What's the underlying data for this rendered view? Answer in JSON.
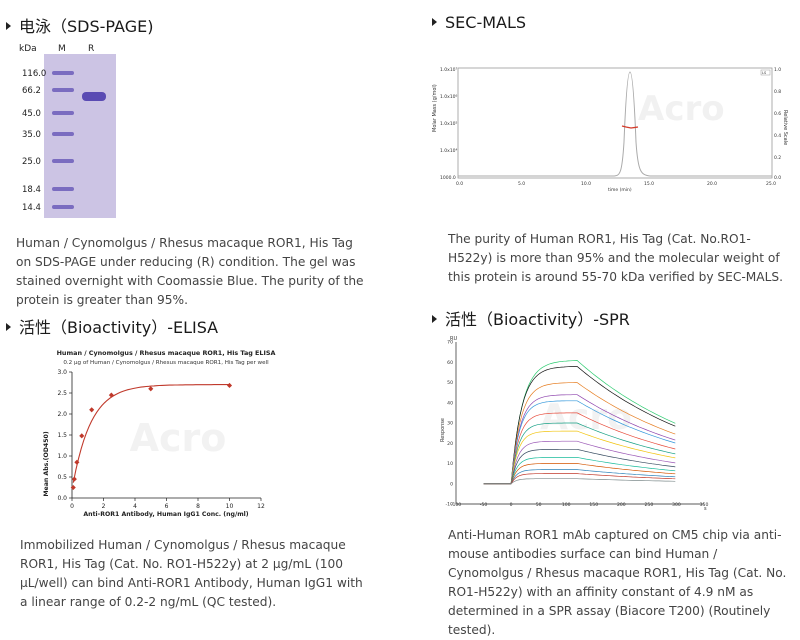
{
  "sections": {
    "sds": {
      "title": "电泳（SDS-PAGE)",
      "gel": {
        "col_kda": "kDa",
        "col_m": "M",
        "col_r": "R",
        "markers": [
          "116.0",
          "66.2",
          "45.0",
          "35.0",
          "25.0",
          "18.4",
          "14.4"
        ]
      },
      "desc": "Human / Cynomolgus / Rhesus macaque ROR1, His Tag on SDS-PAGE under reducing (R) condition. The gel was stained overnight with Coomassie Blue. The purity of the protein is greater than 95%."
    },
    "secmals": {
      "title": "SEC-MALS",
      "plot": {
        "ylabel": "Molar Mass (g/mol)",
        "ylabel2": "Relative Scale",
        "xlabel": "time (min)",
        "yticks": [
          "1.0x10⁷",
          "1.0x10⁶",
          "1.0x10⁵",
          "1.0x10⁴",
          "1000.0"
        ],
        "xticks": [
          "0.0",
          "5.0",
          "10.0",
          "15.0",
          "20.0",
          "25.0"
        ],
        "yticks2": [
          "1.0",
          "0.8",
          "0.6",
          "0.4",
          "0.2",
          "0.0"
        ],
        "legend": "LS"
      },
      "desc": "The purity of Human ROR1, His Tag (Cat. No.RO1-H522y) is more than 95% and the molecular weight of this protein is around 55-70 kDa verified by SEC-MALS."
    },
    "elisa": {
      "title": "活性（Bioactivity）-ELISA",
      "desc": "Immobilized Human / Cynomolgus / Rhesus macaque ROR1, His Tag (Cat. No. RO1-H522y) at 2 μg/mL (100 μL/well) can bind Anti-ROR1 Antibody, Human IgG1 with a linear range of 0.2-2 ng/mL (QC tested)."
    },
    "spr": {
      "title": "活性（Bioactivity）-SPR",
      "plot": {
        "ylabel": "Response",
        "xunit": "s",
        "yunit": "RU",
        "xticks": [
          "-100",
          "-50",
          "0",
          "50",
          "100",
          "150",
          "200",
          "250",
          "300",
          "350"
        ],
        "yticks": [
          "70",
          "60",
          "50",
          "40",
          "30",
          "20",
          "10",
          "0",
          "-10"
        ]
      },
      "desc": "Anti-Human ROR1 mAb captured on CM5 chip via anti-mouse antibodies surface can bind Human / Cynomolgus / Rhesus macaque ROR1, His Tag (Cat. No. RO1-H522y) with an affinity constant of 4.9 nM as determined in a SPR assay (Biacore T200) (Routinely tested)."
    }
  },
  "chart_data": [
    {
      "type": "scatter",
      "title": "Human / Cynomolgus / Rhesus macaque ROR1, His Tag ELISA",
      "subtitle": "0.2 μg of Human / Cynomolgus / Rhesus macaque ROR1, His Tag per well",
      "xlabel": "Anti-ROR1 Antibody, Human IgG1 Conc. (ng/ml)",
      "ylabel": "Mean Abs.(OD450)",
      "xlim": [
        0,
        12
      ],
      "ylim": [
        0,
        3.0
      ],
      "xticks": [
        0,
        2,
        4,
        6,
        8,
        10,
        12
      ],
      "yticks": [
        0.0,
        0.5,
        1.0,
        1.5,
        2.0,
        2.5,
        3.0
      ],
      "x": [
        0.08,
        0.15,
        0.31,
        0.62,
        1.25,
        2.5,
        5.0,
        10.0
      ],
      "y": [
        0.25,
        0.45,
        0.85,
        1.48,
        2.1,
        2.45,
        2.6,
        2.68
      ],
      "fit": "4PL"
    }
  ]
}
